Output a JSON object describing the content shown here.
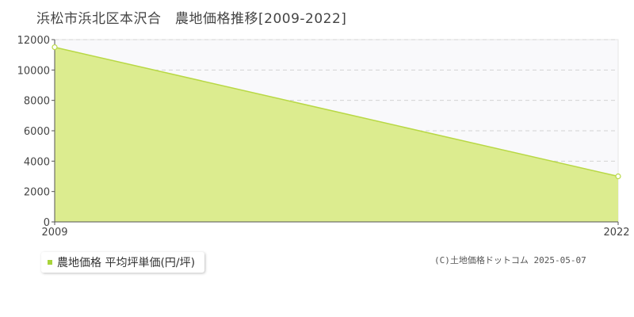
{
  "title": "浜松市浜北区本沢合　農地価格推移[2009-2022]",
  "legend": {
    "label": "農地価格 平均坪単価(円/坪)"
  },
  "copyright": "(C)土地価格ドットコム 2025-05-07",
  "colors": {
    "fill": "#dcec8f",
    "line": "#b8d845",
    "swatch": "#a8d43a",
    "plot_band": "#f9f9fb",
    "grid": "#d3d3d3",
    "axis": "#555555"
  },
  "chart_data": {
    "type": "area",
    "title": "浜松市浜北区本沢合　農地価格推移[2009-2022]",
    "x": [
      2009,
      2022
    ],
    "x_tick_labels": [
      "2009",
      "2022"
    ],
    "series": [
      {
        "name": "農地価格 平均坪単価(円/坪)",
        "values": [
          11500,
          3000
        ]
      }
    ],
    "ylim": [
      0,
      12000
    ],
    "y_ticks": [
      0,
      2000,
      4000,
      6000,
      8000,
      10000,
      12000
    ],
    "grid": true,
    "legend_position": "bottom-left"
  }
}
